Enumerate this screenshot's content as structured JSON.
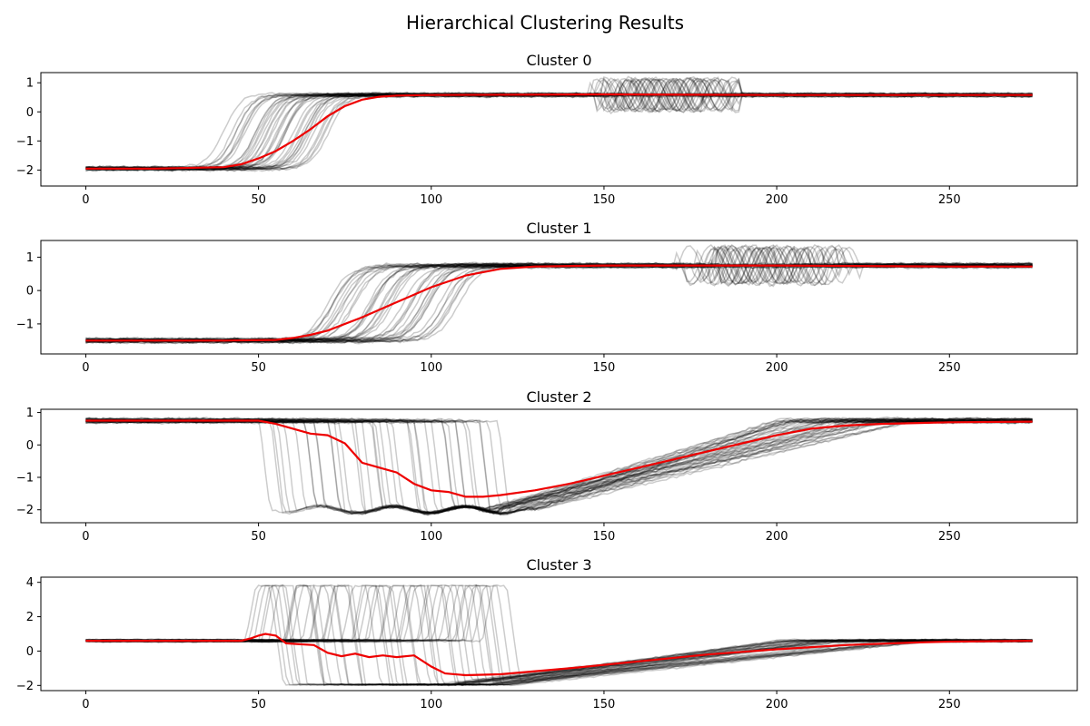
{
  "title": "Hierarchical Clustering Results",
  "colors": {
    "member": "#000000",
    "centroid": "#ee0000"
  },
  "chart_data": [
    {
      "type": "line",
      "title": "Cluster 0",
      "xlim": [
        -13,
        287
      ],
      "ylim": [
        -2.55,
        1.35
      ],
      "xticks": [
        0,
        50,
        100,
        150,
        200,
        250
      ],
      "yticks": [
        -2,
        -1,
        0,
        1
      ],
      "profile": {
        "kind": "rise",
        "low": -1.95,
        "high": 0.58,
        "t_min": 42,
        "t_max": 70,
        "width": 10,
        "wobble": [
          145,
          190,
          0.55
        ]
      },
      "series": [
        {
          "role": "centroid",
          "x": [
            0,
            20,
            40,
            45,
            50,
            55,
            60,
            65,
            70,
            75,
            80,
            85,
            90,
            100,
            150,
            200,
            250,
            274
          ],
          "y": [
            -1.95,
            -1.95,
            -1.9,
            -1.8,
            -1.6,
            -1.35,
            -1.0,
            -0.6,
            -0.15,
            0.2,
            0.42,
            0.52,
            0.56,
            0.58,
            0.6,
            0.58,
            0.58,
            0.58
          ]
        }
      ]
    },
    {
      "type": "line",
      "title": "Cluster 1",
      "xlim": [
        -13,
        287
      ],
      "ylim": [
        -1.9,
        1.5
      ],
      "xticks": [
        0,
        50,
        100,
        150,
        200,
        250
      ],
      "yticks": [
        -1,
        0,
        1
      ],
      "profile": {
        "kind": "rise",
        "low": -1.5,
        "high": 0.75,
        "t_min": 70,
        "t_max": 108,
        "width": 12,
        "wobble": [
          170,
          225,
          0.55
        ]
      },
      "series": [
        {
          "role": "centroid",
          "x": [
            0,
            40,
            55,
            60,
            65,
            70,
            80,
            90,
            100,
            110,
            120,
            130,
            150,
            200,
            250,
            274
          ],
          "y": [
            -1.5,
            -1.5,
            -1.48,
            -1.42,
            -1.33,
            -1.2,
            -0.8,
            -0.35,
            0.1,
            0.45,
            0.65,
            0.72,
            0.75,
            0.75,
            0.72,
            0.72
          ]
        }
      ]
    },
    {
      "type": "line",
      "title": "Cluster 2",
      "xlim": [
        -13,
        287
      ],
      "ylim": [
        -2.4,
        1.1
      ],
      "xticks": [
        0,
        50,
        100,
        150,
        200,
        250
      ],
      "yticks": [
        -2,
        -1,
        0,
        1
      ],
      "profile": {
        "kind": "drop",
        "high": 0.75,
        "low": -2.0,
        "t_min": 52,
        "t_max": 119,
        "rec_start": [
          115,
          130
        ],
        "rec_end": [
          200,
          240
        ]
      },
      "series": [
        {
          "role": "centroid",
          "x": [
            0,
            50,
            55,
            60,
            65,
            70,
            75,
            80,
            85,
            90,
            95,
            100,
            105,
            110,
            115,
            120,
            130,
            140,
            150,
            160,
            170,
            180,
            190,
            200,
            210,
            220,
            230,
            250,
            274
          ],
          "y": [
            0.75,
            0.75,
            0.65,
            0.5,
            0.35,
            0.3,
            0.05,
            -0.55,
            -0.7,
            -0.85,
            -1.2,
            -1.4,
            -1.45,
            -1.6,
            -1.6,
            -1.55,
            -1.4,
            -1.2,
            -0.95,
            -0.7,
            -0.45,
            -0.2,
            0.05,
            0.3,
            0.5,
            0.6,
            0.65,
            0.7,
            0.72
          ]
        }
      ]
    },
    {
      "type": "line",
      "title": "Cluster 3",
      "xlim": [
        -13,
        287
      ],
      "ylim": [
        -2.3,
        4.3
      ],
      "xticks": [
        0,
        50,
        100,
        150,
        200,
        250
      ],
      "yticks": [
        -2,
        0,
        2,
        4
      ],
      "profile": {
        "kind": "spike",
        "high": 0.6,
        "peak": 3.8,
        "low": -1.95,
        "t_min": 45,
        "t_max": 115,
        "rec_start": [
          100,
          125
        ],
        "rec_end": [
          200,
          250
        ]
      },
      "series": [
        {
          "role": "centroid",
          "x": [
            0,
            45,
            48,
            50,
            52,
            55,
            58,
            62,
            66,
            70,
            74,
            78,
            82,
            86,
            90,
            95,
            100,
            104,
            110,
            120,
            140,
            160,
            180,
            200,
            220,
            240,
            250,
            274
          ],
          "y": [
            0.6,
            0.6,
            0.75,
            0.9,
            1.0,
            0.9,
            0.45,
            0.4,
            0.35,
            -0.1,
            -0.3,
            -0.15,
            -0.35,
            -0.25,
            -0.35,
            -0.25,
            -0.9,
            -1.3,
            -1.4,
            -1.35,
            -1.0,
            -0.6,
            -0.2,
            0.1,
            0.35,
            0.5,
            0.55,
            0.6
          ]
        }
      ]
    }
  ]
}
